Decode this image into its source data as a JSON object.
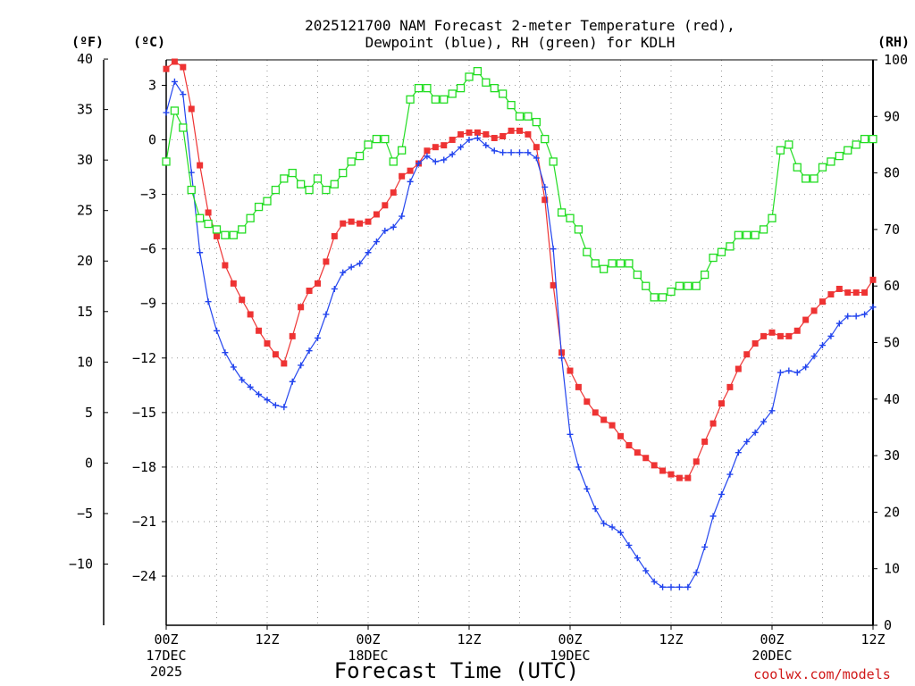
{
  "chart_data": {
    "type": "line",
    "title_line1": "2025121700 NAM Forecast 2-meter Temperature (red),",
    "title_line2": "Dewpoint (blue), RH (green) for KDLH",
    "xlabel": "Forecast Time (UTC)",
    "credit": "coolwx.com/models",
    "units": {
      "fahrenheit": "(ºF)",
      "celsius": "(ºC)",
      "rh": "(RH)"
    },
    "x_unit": "forecast hours",
    "x_range": [
      0,
      84
    ],
    "celsius_range": [
      -26.7,
      4.4
    ],
    "rh_range": [
      0,
      100
    ],
    "x_ticks": [
      {
        "hour": 0,
        "label": "00Z",
        "sub1": "17DEC",
        "sub2": "2025"
      },
      {
        "hour": 12,
        "label": "12Z",
        "sub1": "",
        "sub2": ""
      },
      {
        "hour": 24,
        "label": "00Z",
        "sub1": "18DEC",
        "sub2": ""
      },
      {
        "hour": 36,
        "label": "12Z",
        "sub1": "",
        "sub2": ""
      },
      {
        "hour": 48,
        "label": "00Z",
        "sub1": "19DEC",
        "sub2": ""
      },
      {
        "hour": 60,
        "label": "12Z",
        "sub1": "",
        "sub2": ""
      },
      {
        "hour": 72,
        "label": "00Z",
        "sub1": "20DEC",
        "sub2": ""
      },
      {
        "hour": 84,
        "label": "12Z",
        "sub1": "",
        "sub2": ""
      }
    ],
    "fahrenheit_ticks": [
      {
        "value": 40,
        "label": "40"
      },
      {
        "value": 35,
        "label": "35"
      },
      {
        "value": 30,
        "label": "30"
      },
      {
        "value": 25,
        "label": "25"
      },
      {
        "value": 20,
        "label": "20"
      },
      {
        "value": 15,
        "label": "15"
      },
      {
        "value": 10,
        "label": "10"
      },
      {
        "value": 5,
        "label": "5"
      },
      {
        "value": 0,
        "label": "0"
      },
      {
        "value": -5,
        "label": "−5"
      },
      {
        "value": -10,
        "label": "−10"
      }
    ],
    "celsius_ticks": [
      {
        "value": 3,
        "label": "3"
      },
      {
        "value": 0,
        "label": "0"
      },
      {
        "value": -3,
        "label": "−3"
      },
      {
        "value": -6,
        "label": "−6"
      },
      {
        "value": -9,
        "label": "−9"
      },
      {
        "value": -12,
        "label": "−12"
      },
      {
        "value": -15,
        "label": "−15"
      },
      {
        "value": -18,
        "label": "−18"
      },
      {
        "value": -21,
        "label": "−21"
      },
      {
        "value": -24,
        "label": "−24"
      }
    ],
    "rh_ticks": [
      {
        "value": 100,
        "label": "100"
      },
      {
        "value": 90,
        "label": "90"
      },
      {
        "value": 80,
        "label": "80"
      },
      {
        "value": 70,
        "label": "70"
      },
      {
        "value": 60,
        "label": "60"
      },
      {
        "value": 50,
        "label": "50"
      },
      {
        "value": 40,
        "label": "40"
      },
      {
        "value": 30,
        "label": "30"
      },
      {
        "value": 20,
        "label": "20"
      },
      {
        "value": 10,
        "label": "10"
      },
      {
        "value": 0,
        "label": "0"
      }
    ],
    "series": [
      {
        "name": "2-meter Temperature",
        "axis": "celsius",
        "color": "#ee3333",
        "marker": "filled-square",
        "points": [
          [
            0,
            3.9
          ],
          [
            1,
            4.3
          ],
          [
            2,
            4.0
          ],
          [
            3,
            1.7
          ],
          [
            4,
            -1.4
          ],
          [
            5,
            -4.0
          ],
          [
            6,
            -5.3
          ],
          [
            7,
            -6.9
          ],
          [
            8,
            -7.9
          ],
          [
            9,
            -8.8
          ],
          [
            10,
            -9.6
          ],
          [
            11,
            -10.5
          ],
          [
            12,
            -11.2
          ],
          [
            13,
            -11.8
          ],
          [
            14,
            -12.3
          ],
          [
            15,
            -10.8
          ],
          [
            16,
            -9.2
          ],
          [
            17,
            -8.3
          ],
          [
            18,
            -7.9
          ],
          [
            19,
            -6.7
          ],
          [
            20,
            -5.3
          ],
          [
            21,
            -4.6
          ],
          [
            22,
            -4.5
          ],
          [
            23,
            -4.6
          ],
          [
            24,
            -4.5
          ],
          [
            25,
            -4.1
          ],
          [
            26,
            -3.6
          ],
          [
            27,
            -2.9
          ],
          [
            28,
            -2.0
          ],
          [
            29,
            -1.7
          ],
          [
            30,
            -1.3
          ],
          [
            31,
            -0.6
          ],
          [
            32,
            -0.4
          ],
          [
            33,
            -0.3
          ],
          [
            34,
            0.0
          ],
          [
            35,
            0.3
          ],
          [
            36,
            0.4
          ],
          [
            37,
            0.4
          ],
          [
            38,
            0.3
          ],
          [
            39,
            0.1
          ],
          [
            40,
            0.2
          ],
          [
            41,
            0.5
          ],
          [
            42,
            0.5
          ],
          [
            43,
            0.3
          ],
          [
            44,
            -0.4
          ],
          [
            45,
            -3.3
          ],
          [
            46,
            -8.0
          ],
          [
            47,
            -11.7
          ],
          [
            48,
            -12.7
          ],
          [
            49,
            -13.6
          ],
          [
            50,
            -14.4
          ],
          [
            51,
            -15.0
          ],
          [
            52,
            -15.4
          ],
          [
            53,
            -15.7
          ],
          [
            54,
            -16.3
          ],
          [
            55,
            -16.8
          ],
          [
            56,
            -17.2
          ],
          [
            57,
            -17.5
          ],
          [
            58,
            -17.9
          ],
          [
            59,
            -18.2
          ],
          [
            60,
            -18.4
          ],
          [
            61,
            -18.6
          ],
          [
            62,
            -18.6
          ],
          [
            63,
            -17.7
          ],
          [
            64,
            -16.6
          ],
          [
            65,
            -15.6
          ],
          [
            66,
            -14.5
          ],
          [
            67,
            -13.6
          ],
          [
            68,
            -12.6
          ],
          [
            69,
            -11.8
          ],
          [
            70,
            -11.2
          ],
          [
            71,
            -10.8
          ],
          [
            72,
            -10.6
          ],
          [
            73,
            -10.8
          ],
          [
            74,
            -10.8
          ],
          [
            75,
            -10.5
          ],
          [
            76,
            -9.9
          ],
          [
            77,
            -9.4
          ],
          [
            78,
            -8.9
          ],
          [
            79,
            -8.5
          ],
          [
            80,
            -8.2
          ],
          [
            81,
            -8.4
          ],
          [
            82,
            -8.4
          ],
          [
            83,
            -8.4
          ],
          [
            84,
            -7.7
          ]
        ]
      },
      {
        "name": "Dewpoint",
        "axis": "celsius",
        "color": "#2244ee",
        "marker": "plus",
        "points": [
          [
            0,
            1.5
          ],
          [
            1,
            3.2
          ],
          [
            2,
            2.5
          ],
          [
            3,
            -1.8
          ],
          [
            4,
            -6.2
          ],
          [
            5,
            -8.9
          ],
          [
            6,
            -10.5
          ],
          [
            7,
            -11.7
          ],
          [
            8,
            -12.5
          ],
          [
            9,
            -13.2
          ],
          [
            10,
            -13.6
          ],
          [
            11,
            -14.0
          ],
          [
            12,
            -14.3
          ],
          [
            13,
            -14.6
          ],
          [
            14,
            -14.7
          ],
          [
            15,
            -13.3
          ],
          [
            16,
            -12.4
          ],
          [
            17,
            -11.6
          ],
          [
            18,
            -10.9
          ],
          [
            19,
            -9.6
          ],
          [
            20,
            -8.2
          ],
          [
            21,
            -7.3
          ],
          [
            22,
            -7.0
          ],
          [
            23,
            -6.8
          ],
          [
            24,
            -6.2
          ],
          [
            25,
            -5.6
          ],
          [
            26,
            -5.0
          ],
          [
            27,
            -4.8
          ],
          [
            28,
            -4.2
          ],
          [
            29,
            -2.3
          ],
          [
            30,
            -1.3
          ],
          [
            31,
            -0.9
          ],
          [
            32,
            -1.2
          ],
          [
            33,
            -1.1
          ],
          [
            34,
            -0.8
          ],
          [
            35,
            -0.4
          ],
          [
            36,
            0.0
          ],
          [
            37,
            0.1
          ],
          [
            38,
            -0.3
          ],
          [
            39,
            -0.6
          ],
          [
            40,
            -0.7
          ],
          [
            41,
            -0.7
          ],
          [
            42,
            -0.7
          ],
          [
            43,
            -0.7
          ],
          [
            44,
            -1.0
          ],
          [
            45,
            -2.6
          ],
          [
            46,
            -6.0
          ],
          [
            47,
            -12.0
          ],
          [
            48,
            -16.2
          ],
          [
            49,
            -18.0
          ],
          [
            50,
            -19.2
          ],
          [
            51,
            -20.3
          ],
          [
            52,
            -21.1
          ],
          [
            53,
            -21.3
          ],
          [
            54,
            -21.6
          ],
          [
            55,
            -22.3
          ],
          [
            56,
            -23.0
          ],
          [
            57,
            -23.7
          ],
          [
            58,
            -24.3
          ],
          [
            59,
            -24.6
          ],
          [
            60,
            -24.6
          ],
          [
            61,
            -24.6
          ],
          [
            62,
            -24.6
          ],
          [
            63,
            -23.8
          ],
          [
            64,
            -22.4
          ],
          [
            65,
            -20.7
          ],
          [
            66,
            -19.5
          ],
          [
            67,
            -18.4
          ],
          [
            68,
            -17.2
          ],
          [
            69,
            -16.6
          ],
          [
            70,
            -16.1
          ],
          [
            71,
            -15.5
          ],
          [
            72,
            -14.9
          ],
          [
            73,
            -12.8
          ],
          [
            74,
            -12.7
          ],
          [
            75,
            -12.8
          ],
          [
            76,
            -12.5
          ],
          [
            77,
            -11.9
          ],
          [
            78,
            -11.3
          ],
          [
            79,
            -10.8
          ],
          [
            80,
            -10.1
          ],
          [
            81,
            -9.7
          ],
          [
            82,
            -9.7
          ],
          [
            83,
            -9.6
          ],
          [
            84,
            -9.2
          ]
        ]
      },
      {
        "name": "RH",
        "axis": "rh",
        "color": "#22dd22",
        "marker": "open-square",
        "points": [
          [
            0,
            82
          ],
          [
            1,
            91
          ],
          [
            2,
            88
          ],
          [
            3,
            77
          ],
          [
            4,
            72
          ],
          [
            5,
            71
          ],
          [
            6,
            70
          ],
          [
            7,
            69
          ],
          [
            8,
            69
          ],
          [
            9,
            70
          ],
          [
            10,
            72
          ],
          [
            11,
            74
          ],
          [
            12,
            75
          ],
          [
            13,
            77
          ],
          [
            14,
            79
          ],
          [
            15,
            80
          ],
          [
            16,
            78
          ],
          [
            17,
            77
          ],
          [
            18,
            79
          ],
          [
            19,
            77
          ],
          [
            20,
            78
          ],
          [
            21,
            80
          ],
          [
            22,
            82
          ],
          [
            23,
            83
          ],
          [
            24,
            85
          ],
          [
            25,
            86
          ],
          [
            26,
            86
          ],
          [
            27,
            82
          ],
          [
            28,
            84
          ],
          [
            29,
            93
          ],
          [
            30,
            95
          ],
          [
            31,
            95
          ],
          [
            32,
            93
          ],
          [
            33,
            93
          ],
          [
            34,
            94
          ],
          [
            35,
            95
          ],
          [
            36,
            97
          ],
          [
            37,
            98
          ],
          [
            38,
            96
          ],
          [
            39,
            95
          ],
          [
            40,
            94
          ],
          [
            41,
            92
          ],
          [
            42,
            90
          ],
          [
            43,
            90
          ],
          [
            44,
            89
          ],
          [
            45,
            86
          ],
          [
            46,
            82
          ],
          [
            47,
            73
          ],
          [
            48,
            72
          ],
          [
            49,
            70
          ],
          [
            50,
            66
          ],
          [
            51,
            64
          ],
          [
            52,
            63
          ],
          [
            53,
            64
          ],
          [
            54,
            64
          ],
          [
            55,
            64
          ],
          [
            56,
            62
          ],
          [
            57,
            60
          ],
          [
            58,
            58
          ],
          [
            59,
            58
          ],
          [
            60,
            59
          ],
          [
            61,
            60
          ],
          [
            62,
            60
          ],
          [
            63,
            60
          ],
          [
            64,
            62
          ],
          [
            65,
            65
          ],
          [
            66,
            66
          ],
          [
            67,
            67
          ],
          [
            68,
            69
          ],
          [
            69,
            69
          ],
          [
            70,
            69
          ],
          [
            71,
            70
          ],
          [
            72,
            72
          ],
          [
            73,
            84
          ],
          [
            74,
            85
          ],
          [
            75,
            81
          ],
          [
            76,
            79
          ],
          [
            77,
            79
          ],
          [
            78,
            81
          ],
          [
            79,
            82
          ],
          [
            80,
            83
          ],
          [
            81,
            84
          ],
          [
            82,
            85
          ],
          [
            83,
            86
          ],
          [
            84,
            86
          ]
        ]
      }
    ]
  }
}
